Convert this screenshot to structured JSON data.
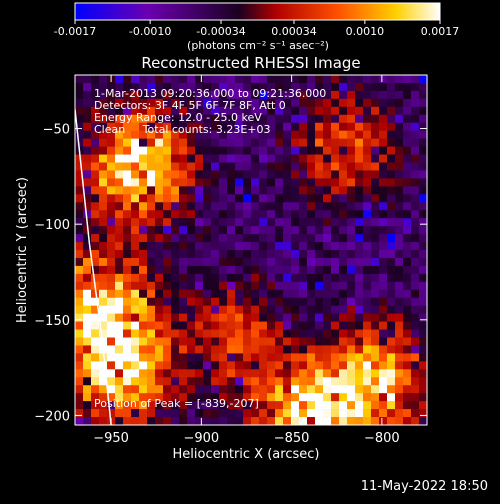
{
  "chart_data": {
    "type": "heatmap",
    "title": "Reconstructed RHESSI Image",
    "xlabel": "Heliocentric X (arcsec)",
    "ylabel": "Heliocentric Y (arcsec)",
    "xlim": [
      -970,
      -775
    ],
    "ylim": [
      -205,
      -22
    ],
    "x_ticks": [
      -950,
      -900,
      -850,
      -800
    ],
    "y_ticks": [
      -200,
      -150,
      -100,
      -50
    ],
    "colorbar": {
      "range": [
        -0.0017,
        0.0017
      ],
      "ticks": [
        "-0.0017",
        "-0.0010",
        "-0.00034",
        "0.00034",
        "0.0010",
        "0.0017"
      ],
      "unit_label": "(photons cm⁻² s⁻¹ asec⁻²)",
      "colormap": [
        "#0000ff",
        "#6a00b0",
        "#1a0020",
        "#b00000",
        "#ff5000",
        "#ffd000",
        "#ffffff"
      ]
    },
    "info_lines": [
      "1-Mar-2013 09:20:36.000 to 09:21:36.000",
      "Detectors: 3F 4F 5F 6F 7F 8F, Att 0",
      "Energy Range: 12.0 - 25.0 keV",
      "Clean     Total counts: 3.23E+03"
    ],
    "peak_label": "Position of Peak = [-839,-207]",
    "peak": [
      -839,
      -207
    ],
    "limb_line": [
      [
        -970,
        -40
      ],
      [
        -962,
        -110
      ],
      [
        -955,
        -160
      ],
      [
        -950,
        -205
      ]
    ],
    "bright_regions": [
      {
        "x": -935,
        "y": -70,
        "strength": 0.95
      },
      {
        "x": -955,
        "y": -140,
        "strength": 0.8
      },
      {
        "x": -945,
        "y": -175,
        "strength": 0.9
      },
      {
        "x": -839,
        "y": -200,
        "strength": 1.0
      },
      {
        "x": -800,
        "y": -180,
        "strength": 0.75
      },
      {
        "x": -820,
        "y": -60,
        "strength": 0.5
      },
      {
        "x": -880,
        "y": -160,
        "strength": 0.45
      }
    ]
  },
  "footer": {
    "timestamp": "11-May-2022 18:50"
  }
}
